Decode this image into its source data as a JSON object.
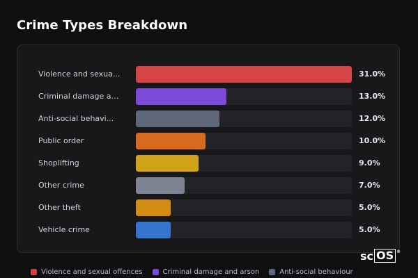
{
  "title": "Crime Types Breakdown",
  "chart_data": {
    "type": "bar",
    "orientation": "horizontal",
    "max_value": 31.0,
    "rows": [
      {
        "label": "Violence and sexua...",
        "value": 31.0,
        "display": "31.0%",
        "color": "#d64545"
      },
      {
        "label": "Criminal damage an...",
        "value": 13.0,
        "display": "13.0%",
        "color": "#7a4bd8"
      },
      {
        "label": "Anti-social behavi...",
        "value": 12.0,
        "display": "12.0%",
        "color": "#5e6878"
      },
      {
        "label": "Public order",
        "value": 10.0,
        "display": "10.0%",
        "color": "#d76a1f"
      },
      {
        "label": "Shoplifting",
        "value": 9.0,
        "display": "9.0%",
        "color": "#d2a216"
      },
      {
        "label": "Other crime",
        "value": 7.0,
        "display": "7.0%",
        "color": "#7c8393"
      },
      {
        "label": "Other theft",
        "value": 5.0,
        "display": "5.0%",
        "color": "#d48b12"
      },
      {
        "label": "Vehicle crime",
        "value": 5.0,
        "display": "5.0%",
        "color": "#3575d0"
      }
    ]
  },
  "legend": [
    {
      "label": "Violence and sexual offences",
      "color": "#d64545"
    },
    {
      "label": "Criminal damage and arson",
      "color": "#7a4bd8"
    },
    {
      "label": "Anti-social behaviour",
      "color": "#5e6878"
    }
  ],
  "brand": {
    "prefix": "sc",
    "boxed": "OS",
    "reg": "®"
  }
}
